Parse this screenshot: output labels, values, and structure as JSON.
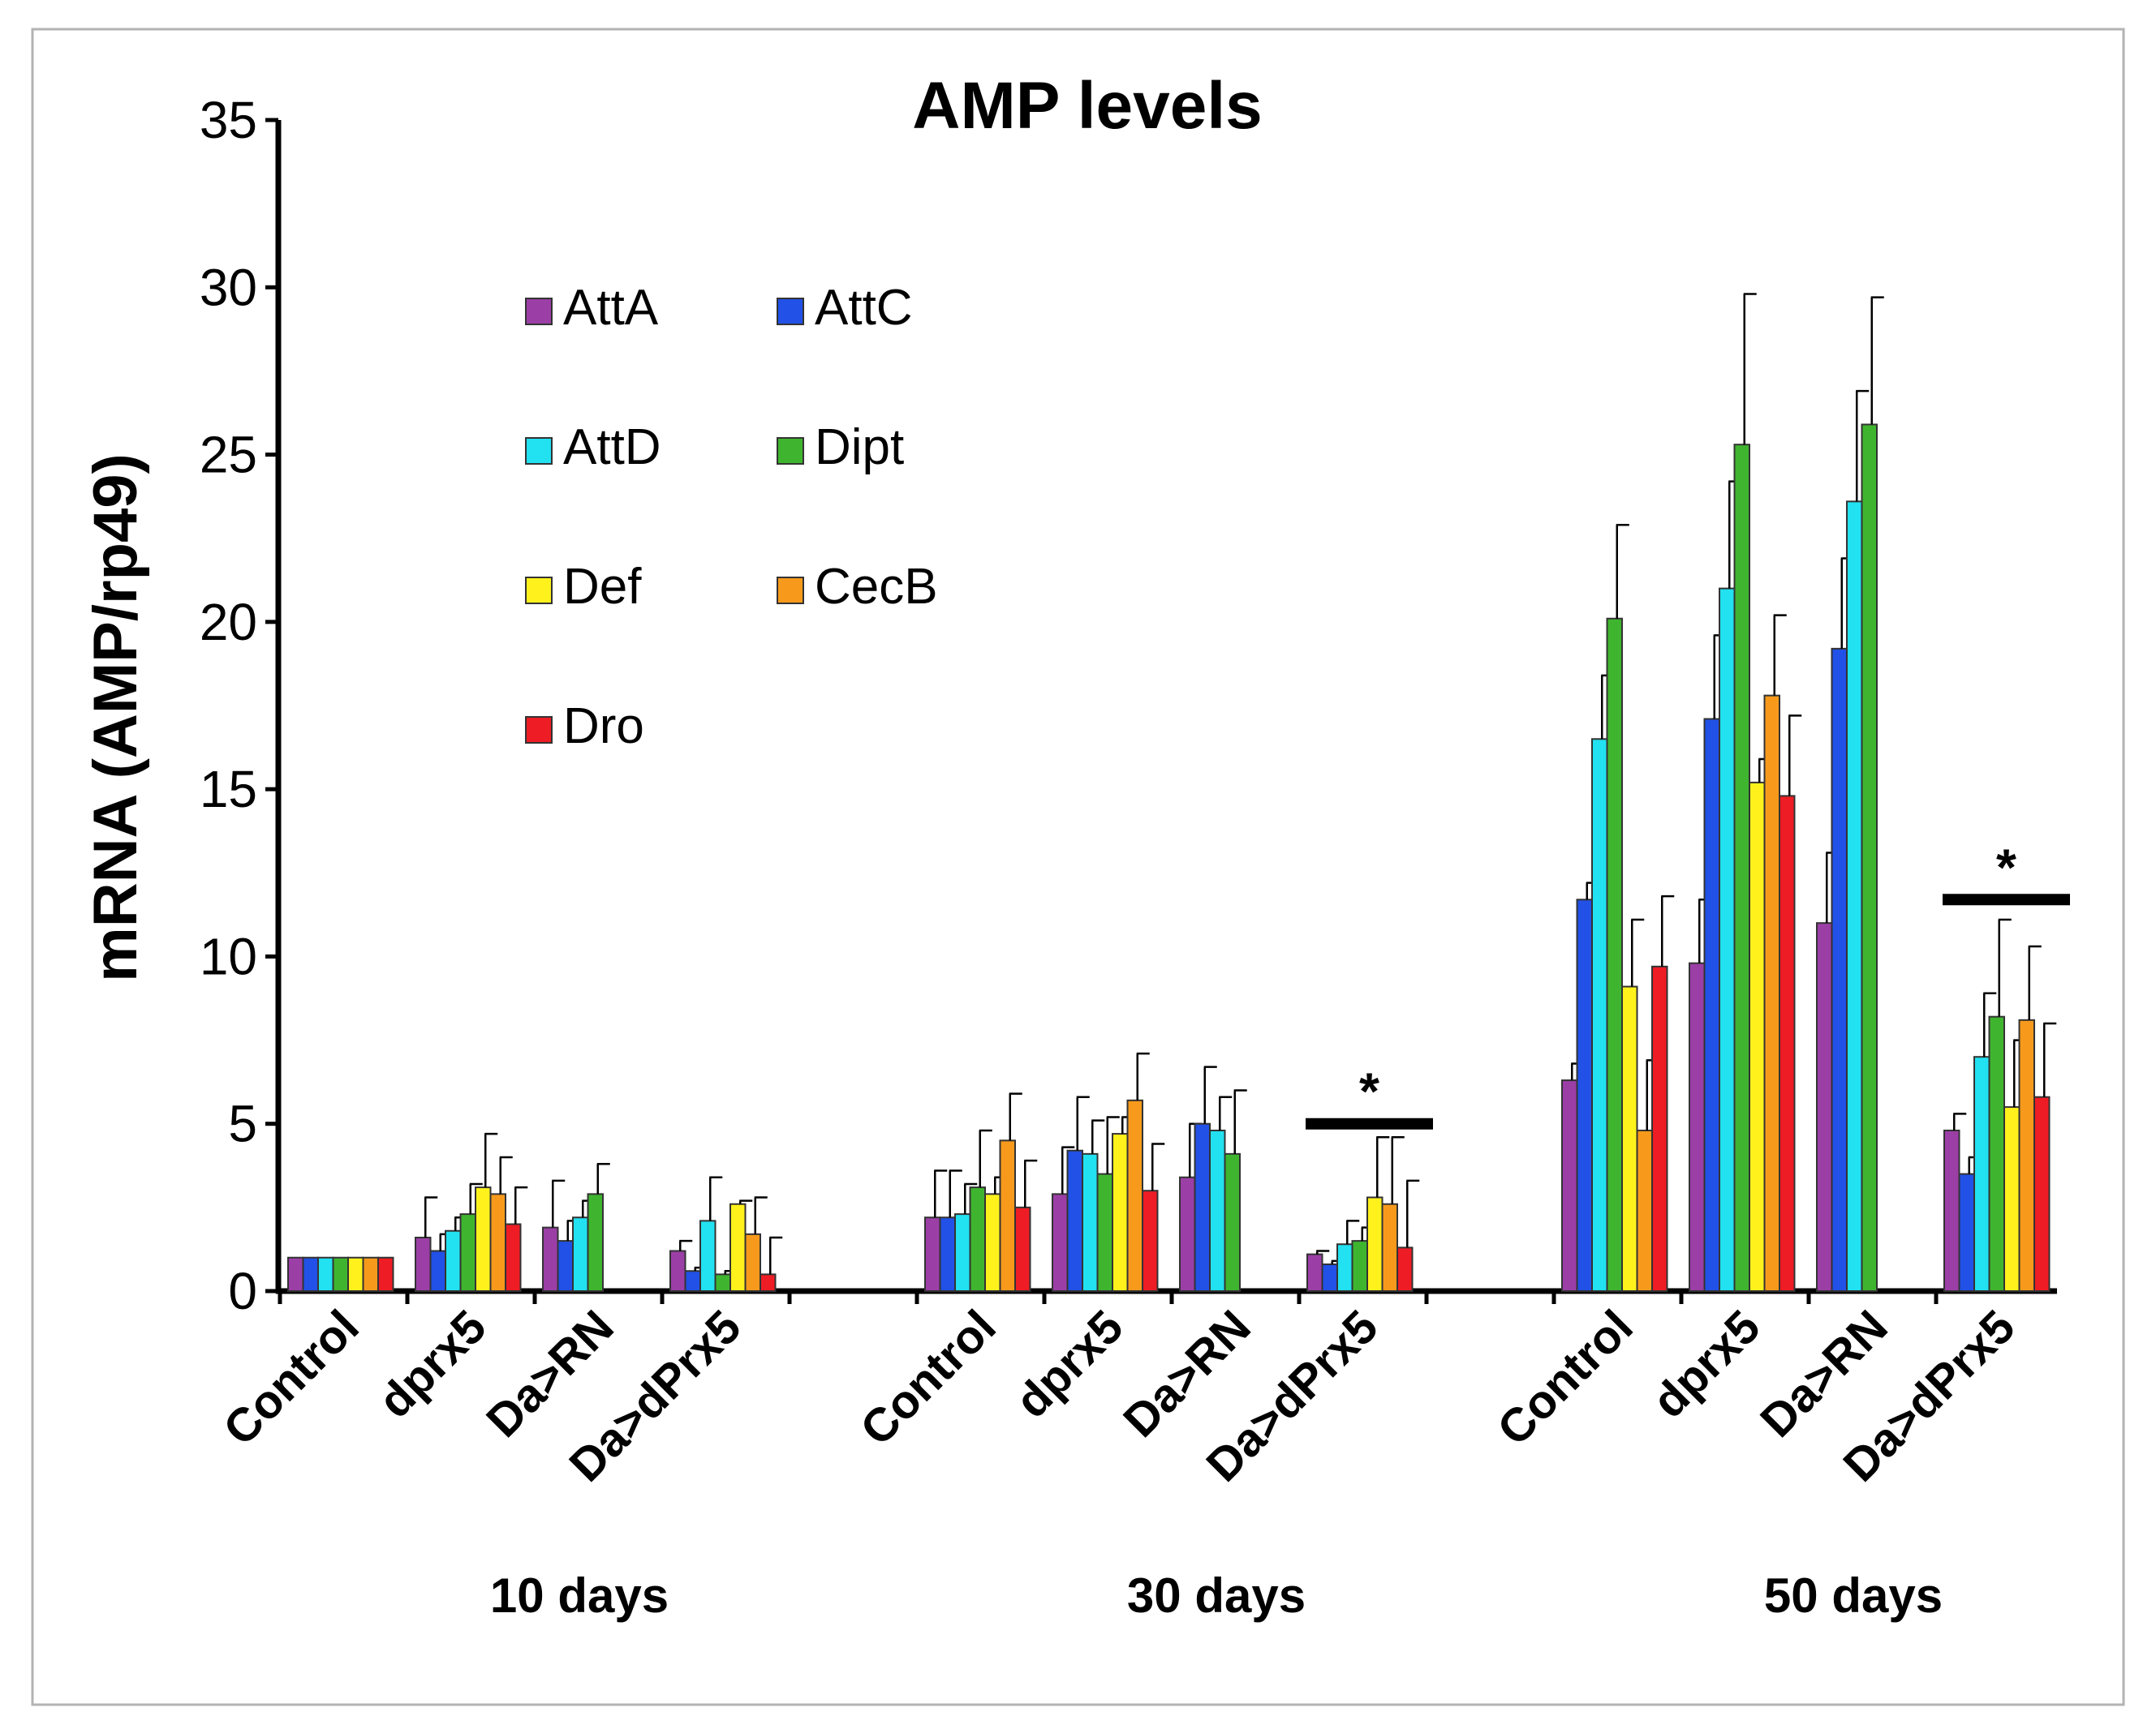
{
  "chart_data": {
    "type": "bar",
    "title": "AMP levels",
    "ylabel": "mRNA (AMP/rp49)",
    "xlabel": "",
    "ylim": [
      0,
      35
    ],
    "yticks": [
      0,
      5,
      10,
      15,
      20,
      25,
      30,
      35
    ],
    "grid": false,
    "legend_position": "upper-left",
    "groups": [
      {
        "label": "10 days",
        "categories": [
          "Control",
          "dprx5",
          "Da>RN",
          "Da>dPrx5"
        ]
      },
      {
        "label": "30 days",
        "categories": [
          "Control",
          "dprx5",
          "Da>RN",
          "Da>dPrx5"
        ]
      },
      {
        "label": "50 days",
        "categories": [
          "Control",
          "dprx5",
          "Da>RN",
          "Da>dPrx5"
        ]
      }
    ],
    "series": [
      {
        "name": "AttA",
        "color": "#9b3fa6",
        "values": [
          1.0,
          1.6,
          1.9,
          1.2,
          2.2,
          2.9,
          3.4,
          1.1,
          6.3,
          9.8,
          11.0,
          4.8
        ],
        "errors": [
          0.0,
          1.2,
          1.4,
          0.3,
          1.4,
          1.4,
          1.6,
          0.1,
          0.5,
          1.9,
          2.1,
          0.5
        ]
      },
      {
        "name": "AttC",
        "color": "#2151e6",
        "values": [
          1.0,
          1.2,
          1.5,
          0.6,
          2.2,
          4.2,
          5.0,
          0.8,
          11.7,
          17.1,
          19.2,
          3.5
        ],
        "errors": [
          0.0,
          0.5,
          0.6,
          0.1,
          1.4,
          1.6,
          1.7,
          0.1,
          0.5,
          2.5,
          2.7,
          0.5
        ]
      },
      {
        "name": "AttD",
        "color": "#22e1f0",
        "values": [
          1.0,
          1.8,
          2.2,
          2.1,
          2.3,
          4.1,
          4.8,
          1.4,
          16.5,
          21.0,
          23.6,
          7.0
        ],
        "errors": [
          0.0,
          0.4,
          0.5,
          1.3,
          0.9,
          1.0,
          1.0,
          0.7,
          1.9,
          3.2,
          3.3,
          1.9
        ]
      },
      {
        "name": "Dipt",
        "color": "#3fb52f",
        "values": [
          1.0,
          2.3,
          2.9,
          0.5,
          3.1,
          3.5,
          4.1,
          1.5,
          20.1,
          25.3,
          25.9,
          8.2
        ],
        "errors": [
          0.0,
          0.9,
          0.9,
          0.1,
          1.7,
          1.7,
          1.9,
          0.4,
          2.8,
          4.5,
          3.8,
          2.9
        ]
      },
      {
        "name": "Def",
        "color": "#fff21c",
        "values": [
          1.0,
          3.1,
          null,
          2.6,
          2.9,
          4.7,
          null,
          2.8,
          9.1,
          15.2,
          null,
          5.5
        ],
        "errors": [
          0.0,
          1.6,
          null,
          0.1,
          0.5,
          0.5,
          null,
          1.8,
          2.0,
          0.7,
          null,
          2.0
        ]
      },
      {
        "name": "CecB",
        "color": "#f79a1c",
        "values": [
          1.0,
          2.9,
          null,
          1.7,
          4.5,
          5.7,
          null,
          2.6,
          4.8,
          17.8,
          null,
          8.1
        ],
        "errors": [
          0.0,
          1.1,
          null,
          1.1,
          1.4,
          1.4,
          null,
          2.0,
          2.1,
          2.4,
          null,
          2.2
        ]
      },
      {
        "name": "Dro",
        "color": "#ee1c24",
        "values": [
          1.0,
          2.0,
          null,
          0.5,
          2.5,
          3.0,
          null,
          1.3,
          9.7,
          14.8,
          null,
          5.8
        ],
        "errors": [
          0.0,
          1.1,
          null,
          1.1,
          1.4,
          1.4,
          null,
          2.0,
          2.1,
          2.4,
          null,
          2.2
        ]
      }
    ],
    "annotations": [
      {
        "text": "*",
        "category_index": 7,
        "y": 5.0
      },
      {
        "text": "*",
        "category_index": 11,
        "y": 11.7
      }
    ]
  }
}
